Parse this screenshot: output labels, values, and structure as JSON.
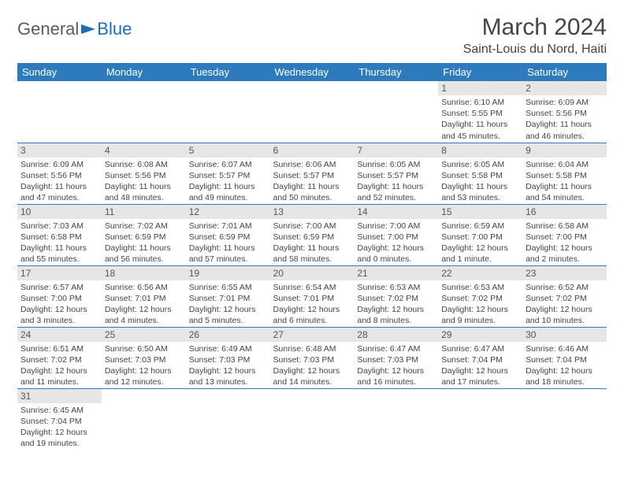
{
  "logo": {
    "text1": "General",
    "text2": "Blue"
  },
  "title": "March 2024",
  "location": "Saint-Louis du Nord, Haiti",
  "columns": [
    "Sunday",
    "Monday",
    "Tuesday",
    "Wednesday",
    "Thursday",
    "Friday",
    "Saturday"
  ],
  "colors": {
    "header_bg": "#2d7bbd",
    "header_text": "#ffffff",
    "cell_border": "#2d7bbd",
    "daynum_bg": "#e6e6e6",
    "logo_blue": "#1a6fb5"
  },
  "weeks": [
    [
      null,
      null,
      null,
      null,
      null,
      {
        "n": "1",
        "sunrise": "Sunrise: 6:10 AM",
        "sunset": "Sunset: 5:55 PM",
        "daylight": "Daylight: 11 hours and 45 minutes."
      },
      {
        "n": "2",
        "sunrise": "Sunrise: 6:09 AM",
        "sunset": "Sunset: 5:56 PM",
        "daylight": "Daylight: 11 hours and 46 minutes."
      }
    ],
    [
      {
        "n": "3",
        "sunrise": "Sunrise: 6:09 AM",
        "sunset": "Sunset: 5:56 PM",
        "daylight": "Daylight: 11 hours and 47 minutes."
      },
      {
        "n": "4",
        "sunrise": "Sunrise: 6:08 AM",
        "sunset": "Sunset: 5:56 PM",
        "daylight": "Daylight: 11 hours and 48 minutes."
      },
      {
        "n": "5",
        "sunrise": "Sunrise: 6:07 AM",
        "sunset": "Sunset: 5:57 PM",
        "daylight": "Daylight: 11 hours and 49 minutes."
      },
      {
        "n": "6",
        "sunrise": "Sunrise: 6:06 AM",
        "sunset": "Sunset: 5:57 PM",
        "daylight": "Daylight: 11 hours and 50 minutes."
      },
      {
        "n": "7",
        "sunrise": "Sunrise: 6:05 AM",
        "sunset": "Sunset: 5:57 PM",
        "daylight": "Daylight: 11 hours and 52 minutes."
      },
      {
        "n": "8",
        "sunrise": "Sunrise: 6:05 AM",
        "sunset": "Sunset: 5:58 PM",
        "daylight": "Daylight: 11 hours and 53 minutes."
      },
      {
        "n": "9",
        "sunrise": "Sunrise: 6:04 AM",
        "sunset": "Sunset: 5:58 PM",
        "daylight": "Daylight: 11 hours and 54 minutes."
      }
    ],
    [
      {
        "n": "10",
        "sunrise": "Sunrise: 7:03 AM",
        "sunset": "Sunset: 6:58 PM",
        "daylight": "Daylight: 11 hours and 55 minutes."
      },
      {
        "n": "11",
        "sunrise": "Sunrise: 7:02 AM",
        "sunset": "Sunset: 6:59 PM",
        "daylight": "Daylight: 11 hours and 56 minutes."
      },
      {
        "n": "12",
        "sunrise": "Sunrise: 7:01 AM",
        "sunset": "Sunset: 6:59 PM",
        "daylight": "Daylight: 11 hours and 57 minutes."
      },
      {
        "n": "13",
        "sunrise": "Sunrise: 7:00 AM",
        "sunset": "Sunset: 6:59 PM",
        "daylight": "Daylight: 11 hours and 58 minutes."
      },
      {
        "n": "14",
        "sunrise": "Sunrise: 7:00 AM",
        "sunset": "Sunset: 7:00 PM",
        "daylight": "Daylight: 12 hours and 0 minutes."
      },
      {
        "n": "15",
        "sunrise": "Sunrise: 6:59 AM",
        "sunset": "Sunset: 7:00 PM",
        "daylight": "Daylight: 12 hours and 1 minute."
      },
      {
        "n": "16",
        "sunrise": "Sunrise: 6:58 AM",
        "sunset": "Sunset: 7:00 PM",
        "daylight": "Daylight: 12 hours and 2 minutes."
      }
    ],
    [
      {
        "n": "17",
        "sunrise": "Sunrise: 6:57 AM",
        "sunset": "Sunset: 7:00 PM",
        "daylight": "Daylight: 12 hours and 3 minutes."
      },
      {
        "n": "18",
        "sunrise": "Sunrise: 6:56 AM",
        "sunset": "Sunset: 7:01 PM",
        "daylight": "Daylight: 12 hours and 4 minutes."
      },
      {
        "n": "19",
        "sunrise": "Sunrise: 6:55 AM",
        "sunset": "Sunset: 7:01 PM",
        "daylight": "Daylight: 12 hours and 5 minutes."
      },
      {
        "n": "20",
        "sunrise": "Sunrise: 6:54 AM",
        "sunset": "Sunset: 7:01 PM",
        "daylight": "Daylight: 12 hours and 6 minutes."
      },
      {
        "n": "21",
        "sunrise": "Sunrise: 6:53 AM",
        "sunset": "Sunset: 7:02 PM",
        "daylight": "Daylight: 12 hours and 8 minutes."
      },
      {
        "n": "22",
        "sunrise": "Sunrise: 6:53 AM",
        "sunset": "Sunset: 7:02 PM",
        "daylight": "Daylight: 12 hours and 9 minutes."
      },
      {
        "n": "23",
        "sunrise": "Sunrise: 6:52 AM",
        "sunset": "Sunset: 7:02 PM",
        "daylight": "Daylight: 12 hours and 10 minutes."
      }
    ],
    [
      {
        "n": "24",
        "sunrise": "Sunrise: 6:51 AM",
        "sunset": "Sunset: 7:02 PM",
        "daylight": "Daylight: 12 hours and 11 minutes."
      },
      {
        "n": "25",
        "sunrise": "Sunrise: 6:50 AM",
        "sunset": "Sunset: 7:03 PM",
        "daylight": "Daylight: 12 hours and 12 minutes."
      },
      {
        "n": "26",
        "sunrise": "Sunrise: 6:49 AM",
        "sunset": "Sunset: 7:03 PM",
        "daylight": "Daylight: 12 hours and 13 minutes."
      },
      {
        "n": "27",
        "sunrise": "Sunrise: 6:48 AM",
        "sunset": "Sunset: 7:03 PM",
        "daylight": "Daylight: 12 hours and 14 minutes."
      },
      {
        "n": "28",
        "sunrise": "Sunrise: 6:47 AM",
        "sunset": "Sunset: 7:03 PM",
        "daylight": "Daylight: 12 hours and 16 minutes."
      },
      {
        "n": "29",
        "sunrise": "Sunrise: 6:47 AM",
        "sunset": "Sunset: 7:04 PM",
        "daylight": "Daylight: 12 hours and 17 minutes."
      },
      {
        "n": "30",
        "sunrise": "Sunrise: 6:46 AM",
        "sunset": "Sunset: 7:04 PM",
        "daylight": "Daylight: 12 hours and 18 minutes."
      }
    ],
    [
      {
        "n": "31",
        "sunrise": "Sunrise: 6:45 AM",
        "sunset": "Sunset: 7:04 PM",
        "daylight": "Daylight: 12 hours and 19 minutes."
      },
      null,
      null,
      null,
      null,
      null,
      null
    ]
  ]
}
